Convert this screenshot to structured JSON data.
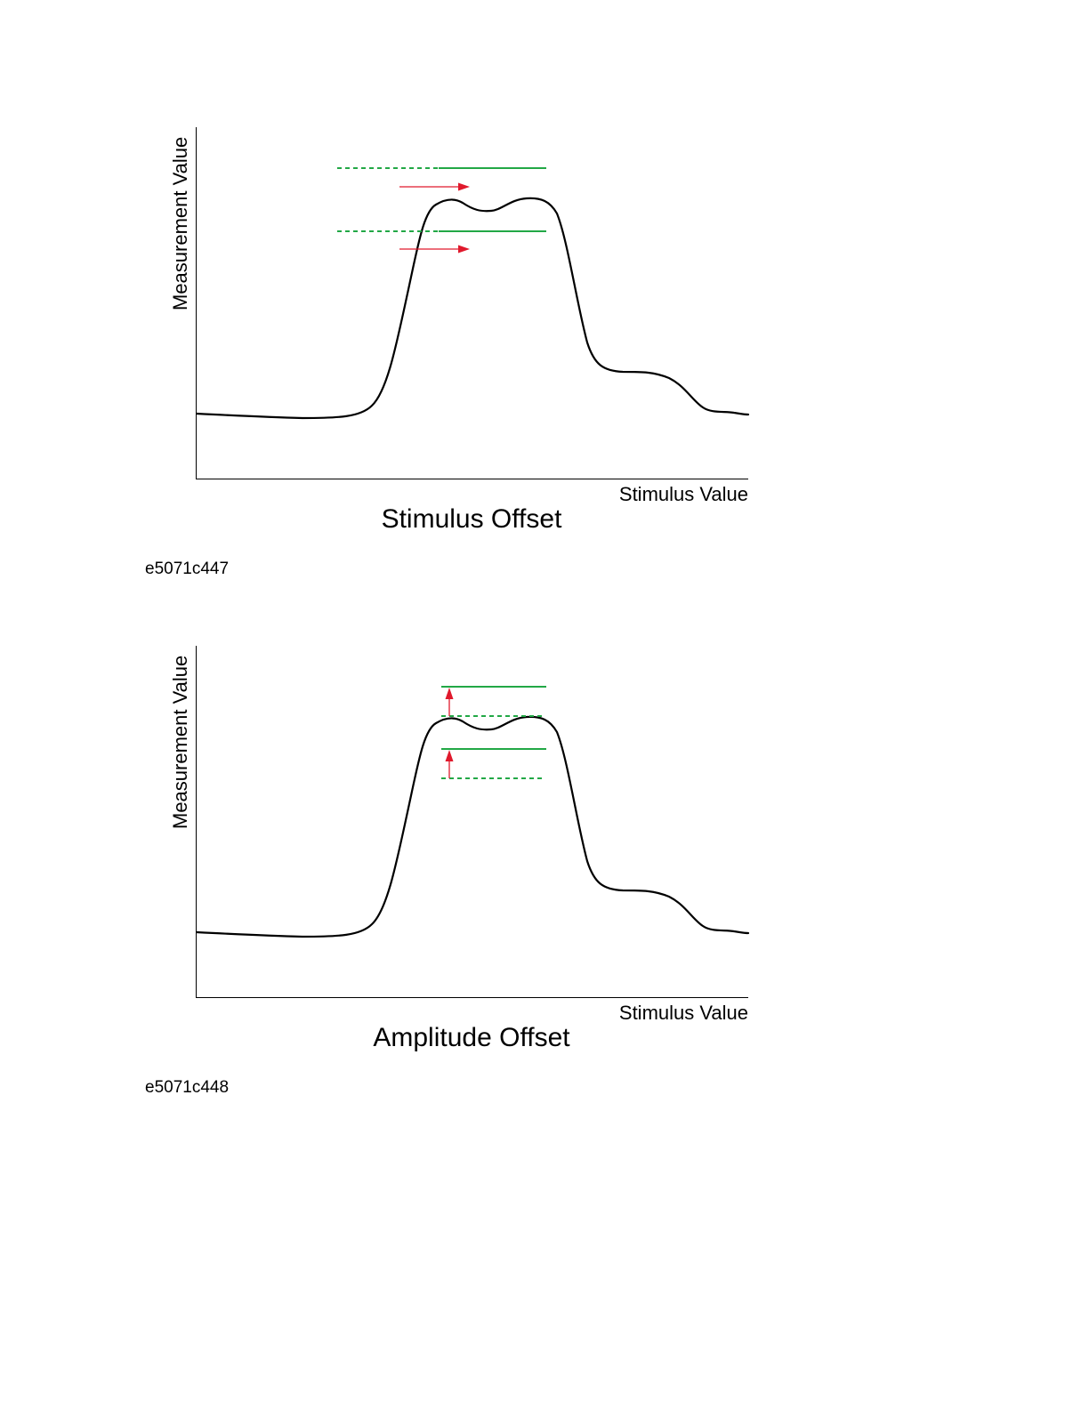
{
  "figures": [
    {
      "id": "e5071c447",
      "caption": "Stimulus Offset",
      "ylabel": "Measurement Value",
      "xlabel": "Stimulus Value",
      "limit_line_color": "#22a846",
      "arrow_color": "#e0192c",
      "arrow_direction": "right"
    },
    {
      "id": "e5071c448",
      "caption": "Amplitude Offset",
      "ylabel": "Measurement Value",
      "xlabel": "Stimulus Value",
      "limit_line_color": "#22a846",
      "arrow_color": "#e0192c",
      "arrow_direction": "up"
    }
  ]
}
